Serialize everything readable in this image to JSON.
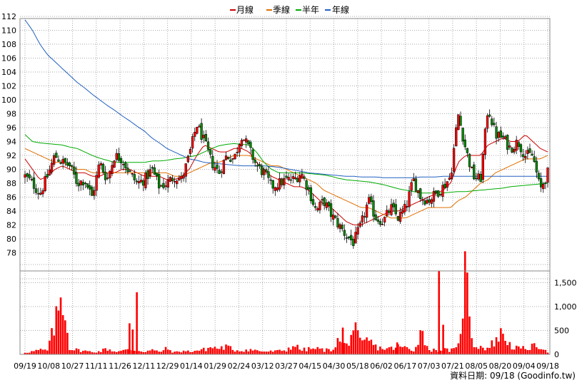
{
  "legend": [
    {
      "label": "月線",
      "color": "#cc0000"
    },
    {
      "label": "季線",
      "color": "#e07000"
    },
    {
      "label": "半年",
      "color": "#00aa00"
    },
    {
      "label": "年線",
      "color": "#2060c0"
    }
  ],
  "credit": "資料日期: 09/18  (Goodinfo.tw)",
  "colors": {
    "up": "#ff0000",
    "down": "#008800",
    "volume": "#ff0000",
    "grid": "#aaaaaa"
  },
  "chart_data": [
    {
      "type": "candlestick",
      "title": "",
      "x_tick_labels": [
        "09/19",
        "10/08",
        "10/27",
        "11/11",
        "11/26",
        "12/11",
        "12/29",
        "01/14",
        "01/29",
        "02/24",
        "03/12",
        "03/27",
        "04/15",
        "04/30",
        "05/18",
        "06/02",
        "06/17",
        "07/03",
        "07/21",
        "08/05",
        "08/20",
        "09/04",
        "09/18"
      ],
      "y_tick_labels": [
        78,
        80,
        82,
        84,
        86,
        88,
        90,
        92,
        94,
        96,
        98,
        100,
        102,
        104,
        106,
        108,
        110,
        112
      ],
      "ylim": [
        76.5,
        113
      ],
      "grid": true,
      "legend_position": "top-center",
      "close_anchors": [
        89,
        88,
        86.5,
        89,
        92,
        91,
        90.5,
        88,
        88.5,
        86,
        91,
        88.5,
        92,
        91.5,
        89.5,
        88,
        88.5,
        90,
        87.5,
        88,
        89,
        88.5,
        92,
        96.5,
        94,
        91,
        89.5,
        92,
        91.5,
        95,
        93,
        90.5,
        89.5,
        87.5,
        88,
        88.5,
        88.5,
        89.5,
        87,
        84,
        85.5,
        83.5,
        82,
        80.5,
        79.5,
        82,
        85.5,
        83,
        82.5,
        84.5,
        83,
        84.5,
        88.5,
        86,
        85.5,
        86.5,
        87.5,
        89,
        98,
        93,
        89,
        88.5,
        99,
        95,
        94.5,
        93,
        94,
        92,
        92,
        87,
        89.5
      ],
      "moving_averages": [
        {
          "name": "月線",
          "anchors": [
            91.5,
            90,
            88.5,
            89,
            90,
            90.5,
            90,
            89.5,
            89.5,
            89,
            89,
            89.5,
            89.5,
            90,
            90,
            89.5,
            89,
            89,
            89,
            88.5,
            88.5,
            89,
            90,
            92,
            93.5,
            93,
            92.5,
            92.5,
            93,
            93,
            92.5,
            91,
            90,
            89,
            88.5,
            88,
            87.5,
            87.5,
            87,
            86,
            85,
            84.5,
            83.5,
            82.5,
            82,
            82,
            82.5,
            83,
            83.5,
            84,
            84,
            84.5,
            85,
            85.5,
            86,
            86.5,
            87,
            88,
            91,
            92,
            92,
            92,
            93.5,
            94,
            94.5,
            94,
            94,
            95,
            94,
            93,
            92.5
          ]
        },
        {
          "name": "季線",
          "anchors": [
            93,
            92.5,
            92,
            91.5,
            91,
            91,
            90.5,
            90,
            90,
            89.5,
            89.5,
            89.5,
            89.5,
            89.5,
            89.5,
            89.5,
            89.5,
            89.5,
            89.5,
            89.5,
            89,
            89,
            89.5,
            90,
            90.5,
            91,
            91,
            91.5,
            92,
            92,
            92,
            91.5,
            91,
            90.5,
            90.5,
            90,
            89.5,
            89,
            88.5,
            88,
            87,
            86.5,
            86,
            85.5,
            85,
            84.5,
            84.5,
            84,
            83.5,
            83,
            83,
            83,
            83.5,
            84,
            84.5,
            84.5,
            84.5,
            84.5,
            85.5,
            86,
            87,
            88,
            88.5,
            89.5,
            90,
            90.5,
            91,
            91.5,
            91.5,
            91.5,
            92
          ]
        },
        {
          "name": "半年",
          "anchors": [
            95,
            94,
            93.8,
            93.7,
            93.6,
            93.5,
            93.2,
            93,
            92.5,
            92,
            91.6,
            91.3,
            91,
            91,
            91,
            91,
            91,
            91.2,
            91.2,
            91.3,
            91.5,
            91.6,
            91.8,
            92,
            92.5,
            93,
            93.4,
            93.6,
            93.7,
            93.6,
            93.5,
            92.5,
            91,
            90,
            89.5,
            89.5,
            89.5,
            89.5,
            89.4,
            89.3,
            89.2,
            89,
            88.7,
            88.5,
            88.4,
            88.3,
            88.2,
            88,
            87.8,
            87.5,
            87.2,
            87,
            86.8,
            86.6,
            86.6,
            86.6,
            86.6,
            86.7,
            86.8,
            86.8,
            86.9,
            87,
            87.1,
            87.2,
            87.3,
            87.5,
            87.6,
            87.7,
            87.8,
            87.9,
            88
          ]
        },
        {
          "name": "年線",
          "anchors": [
            111.5,
            110,
            108,
            106.5,
            105.5,
            104.5,
            103.5,
            102.5,
            101.7,
            100.8,
            100,
            99.2,
            98.5,
            97.7,
            97,
            96.2,
            95.5,
            94.5,
            93.8,
            93,
            92.5,
            92,
            91.5,
            91.3,
            91,
            90.9,
            90.8,
            90.7,
            90.6,
            90.5,
            90.5,
            90.5,
            90.5,
            90.4,
            90.3,
            90.1,
            89.9,
            89.7,
            89.5,
            89.4,
            89.3,
            89.2,
            89.1,
            89,
            89,
            88.9,
            88.9,
            88.9,
            88.8,
            88.8,
            88.8,
            88.8,
            88.8,
            88.9,
            88.9,
            88.9,
            89,
            89,
            89,
            89,
            89,
            89,
            89,
            89,
            89,
            89,
            89,
            89,
            89,
            89,
            89
          ]
        }
      ]
    },
    {
      "type": "bar",
      "title": "",
      "y_tick_labels": [
        "0",
        "500",
        "1,000",
        "1,500"
      ],
      "ylim": [
        0,
        1750
      ],
      "grid": true,
      "volume_anchors": [
        40,
        60,
        90,
        80,
        600,
        1300,
        120,
        90,
        70,
        50,
        60,
        120,
        60,
        70,
        100,
        80,
        60,
        90,
        50,
        120,
        40,
        70,
        60,
        80,
        100,
        150,
        120,
        160,
        90,
        80,
        100,
        80,
        60,
        60,
        70,
        90,
        200,
        90,
        110,
        120,
        90,
        90,
        300,
        160,
        560,
        200,
        300,
        150,
        120,
        120,
        160,
        140,
        60,
        500,
        110,
        80,
        100,
        80,
        120,
        1750,
        200,
        160,
        120,
        300,
        450,
        180,
        120,
        120,
        160,
        180,
        60
      ],
      "volume_spikes": [
        {
          "date": "10/08 area",
          "value": 1300
        },
        {
          "date": "07/21 area",
          "value": 1750
        }
      ]
    }
  ]
}
